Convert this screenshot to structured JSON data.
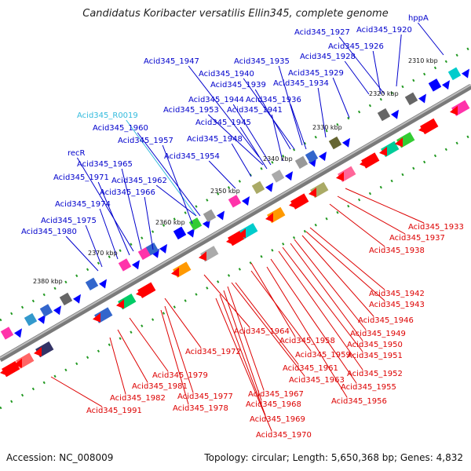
{
  "title": "Candidatus Koribacter versatilis Ellin345, complete genome",
  "footer": {
    "accession": "Accession: NC_008009",
    "summary": "Topology: circular; Length: 5,650,368 bp; Genes: 4,832"
  },
  "colors": {
    "upper_label": "#0000cc",
    "rna_label": "#33bbdd",
    "lower_label": "#dd0000",
    "backbone": "#888888",
    "tick": "#229922"
  },
  "ticks": [
    "2310 kbp",
    "2320 kbp",
    "2330 kbp",
    "2340 kbp",
    "2350 kbp",
    "2360 kbp",
    "2370 kbp",
    "2380 kbp"
  ],
  "upper_labels": [
    "hppA",
    "Acid345_1920",
    "Acid345_1927",
    "Acid345_1926",
    "Acid345_1928",
    "Acid345_1947",
    "Acid345_1935",
    "Acid345_1929",
    "Acid345_1940",
    "Acid345_1934",
    "Acid345_1939",
    "Acid345_1944",
    "Acid345_1936",
    "Acid345_1953",
    "Acid345_1941",
    "Acid345_R0019",
    "Acid345_1945",
    "Acid345_1960",
    "Acid345_1948",
    "Acid345_1957",
    "Acid345_1954",
    "recR",
    "Acid345_1965",
    "Acid345_1971",
    "Acid345_1962",
    "Acid345_1966",
    "Acid345_1974",
    "Acid345_1975",
    "Acid345_1980"
  ],
  "lower_labels": [
    "Acid345_1933",
    "Acid345_1937",
    "Acid345_1938",
    "Acid345_1942",
    "Acid345_1943",
    "Acid345_1946",
    "Acid345_1949",
    "Acid345_1950",
    "Acid345_1964",
    "Acid345_1958",
    "Acid345_1951",
    "Acid345_1959",
    "Acid345_1972",
    "Acid345_1961",
    "Acid345_1952",
    "Acid345_1963",
    "Acid345_1955",
    "Acid345_1979",
    "Acid345_1967",
    "Acid345_1981",
    "Acid345_1977",
    "Acid345_1968",
    "Acid345_1956",
    "Acid345_1982",
    "Acid345_1978",
    "Acid345_1991",
    "Acid345_1969",
    "Acid345_1970"
  ]
}
